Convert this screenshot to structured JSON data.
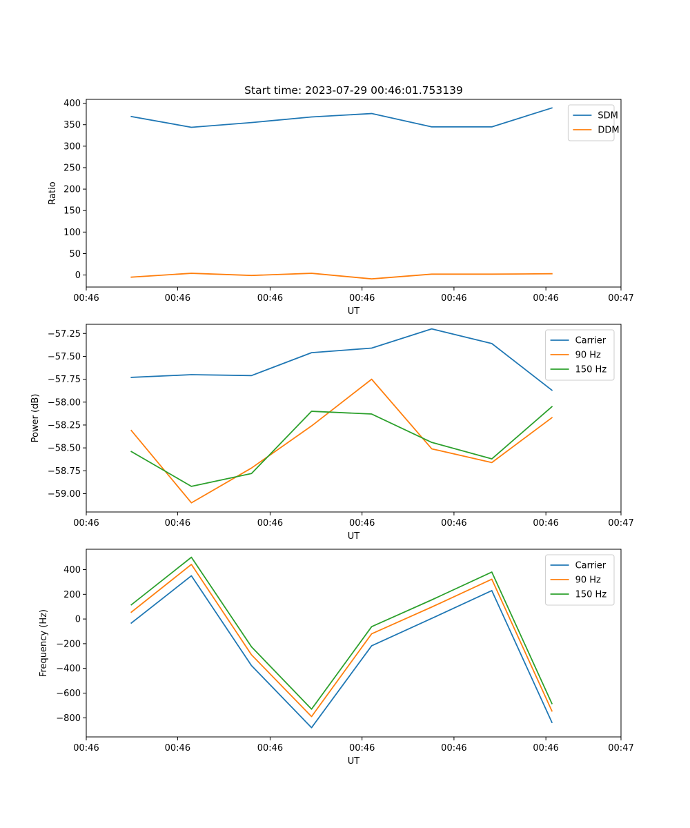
{
  "chart_data": [
    {
      "type": "line",
      "title": "Start time: 2023-07-29 00:46:01.753139",
      "xlabel": "UT",
      "ylabel": "Ratio",
      "x": [
        0,
        1,
        2,
        3,
        4,
        5,
        6,
        7
      ],
      "xlim": [
        -0.75,
        8.15
      ],
      "x_ticks": [
        -0.75,
        0.77,
        2.31,
        3.84,
        5.37,
        6.9,
        8.15
      ],
      "x_tick_labels": [
        "00:46",
        "00:46",
        "00:46",
        "00:46",
        "00:46",
        "00:46",
        "00:47"
      ],
      "ylim": [
        -28,
        409
      ],
      "y_ticks": [
        0,
        50,
        100,
        150,
        200,
        250,
        300,
        350,
        400
      ],
      "y_tick_labels": [
        "0",
        "50",
        "100",
        "150",
        "200",
        "250",
        "300",
        "350",
        "400"
      ],
      "legend_position": "top-right",
      "series": [
        {
          "name": "SDM",
          "color": "#1f77b4",
          "values": [
            369,
            344,
            355,
            368,
            376,
            345,
            345,
            389
          ]
        },
        {
          "name": "DDM",
          "color": "#ff7f0e",
          "values": [
            -5,
            4,
            -1,
            4,
            -9,
            2,
            2,
            3
          ]
        }
      ]
    },
    {
      "type": "line",
      "title": "",
      "xlabel": "UT",
      "ylabel": "Power (dB)",
      "x": [
        0,
        1,
        2,
        3,
        4,
        5,
        6,
        7
      ],
      "xlim": [
        -0.75,
        8.15
      ],
      "x_ticks": [
        -0.75,
        0.77,
        2.31,
        3.84,
        5.37,
        6.9,
        8.15
      ],
      "x_tick_labels": [
        "00:46",
        "00:46",
        "00:46",
        "00:46",
        "00:46",
        "00:46",
        "00:47"
      ],
      "ylim": [
        -59.2,
        -57.15
      ],
      "y_ticks": [
        -59.0,
        -58.75,
        -58.5,
        -58.25,
        -58.0,
        -57.75,
        -57.5,
        -57.25
      ],
      "y_tick_labels": [
        "−59.00",
        "−58.75",
        "−58.50",
        "−58.25",
        "−58.00",
        "−57.75",
        "−57.50",
        "−57.25"
      ],
      "legend_position": "top-right",
      "series": [
        {
          "name": "Carrier",
          "color": "#1f77b4",
          "values": [
            -57.73,
            -57.7,
            -57.71,
            -57.46,
            -57.41,
            -57.2,
            -57.36,
            -57.87
          ]
        },
        {
          "name": "90 Hz",
          "color": "#ff7f0e",
          "values": [
            -58.31,
            -59.1,
            -58.72,
            -58.26,
            -57.75,
            -58.51,
            -58.66,
            -58.17
          ]
        },
        {
          "name": "150 Hz",
          "color": "#2ca02c",
          "values": [
            -58.54,
            -58.92,
            -58.78,
            -58.1,
            -58.13,
            -58.44,
            -58.62,
            -58.05
          ]
        }
      ]
    },
    {
      "type": "line",
      "title": "",
      "xlabel": "UT",
      "ylabel": "Frequency (Hz)",
      "x": [
        0,
        1,
        2,
        3,
        4,
        5,
        6,
        7
      ],
      "xlim": [
        -0.75,
        8.15
      ],
      "x_ticks": [
        -0.75,
        0.77,
        2.31,
        3.84,
        5.37,
        6.9,
        8.15
      ],
      "x_tick_labels": [
        "00:46",
        "00:46",
        "00:46",
        "00:46",
        "00:46",
        "00:46",
        "00:47"
      ],
      "ylim": [
        -955,
        565
      ],
      "y_ticks": [
        -800,
        -600,
        -400,
        -200,
        0,
        200,
        400
      ],
      "y_tick_labels": [
        "−800",
        "−600",
        "−400",
        "−200",
        "0",
        "200",
        "400"
      ],
      "legend_position": "top-right",
      "series": [
        {
          "name": "Carrier",
          "color": "#1f77b4",
          "values": [
            -33,
            350,
            -377,
            -880,
            -217,
            5,
            230,
            -837
          ]
        },
        {
          "name": "90 Hz",
          "color": "#ff7f0e",
          "values": [
            55,
            442,
            -290,
            -790,
            -120,
            97,
            322,
            -745
          ]
        },
        {
          "name": "150 Hz",
          "color": "#2ca02c",
          "values": [
            115,
            500,
            -225,
            -730,
            -62,
            155,
            380,
            -685
          ]
        }
      ]
    }
  ]
}
